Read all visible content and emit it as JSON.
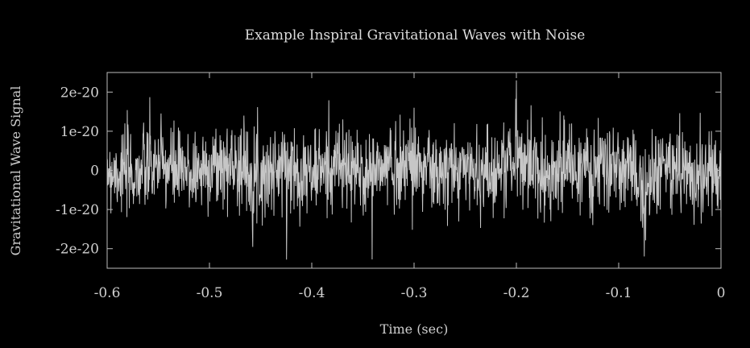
{
  "chart_data": {
    "type": "line",
    "title": "Example Inspiral Gravitational Waves with Noise",
    "xlabel": "Time (sec)",
    "ylabel": "Gravitational Wave Signal",
    "xlim": [
      -0.6,
      0
    ],
    "ylim": [
      -2.5e-20,
      2.5e-20
    ],
    "x_ticks": [
      -0.6,
      -0.5,
      -0.4,
      -0.3,
      -0.2,
      -0.1,
      0
    ],
    "x_tick_labels": [
      "-0.6",
      "-0.5",
      "-0.4",
      "-0.3",
      "-0.2",
      "-0.1",
      "0"
    ],
    "y_ticks": [
      2e-20,
      1e-20,
      0,
      -1e-20,
      -2e-20
    ],
    "y_tick_labels": [
      "2e-20",
      "1e-20",
      "0",
      "-1e-20",
      "-2e-20"
    ],
    "grid": false,
    "legend": false,
    "line_color": "#c6c6c6",
    "background_color": "#000000",
    "series": [
      {
        "x": [
          -0.6,
          -0.575,
          -0.55,
          -0.525,
          -0.5,
          -0.475,
          -0.45,
          -0.425,
          -0.4,
          -0.375,
          -0.35,
          -0.325,
          -0.3,
          -0.275,
          -0.25,
          -0.225,
          -0.2,
          -0.175,
          -0.15,
          -0.125,
          -0.1,
          -0.075,
          -0.05,
          -0.025,
          0
        ],
        "y": [
          3e-21,
          -6e-21,
          8e-21,
          -5e-21,
          4e-21,
          9e-21,
          -7e-21,
          5e-21,
          -3e-21,
          7e-21,
          -8e-21,
          6e-21,
          1.6e-20,
          -9e-21,
          4e-21,
          -6e-21,
          2.3e-20,
          -5e-21,
          7e-21,
          -4e-21,
          6e-21,
          -2.2e-20,
          8e-21,
          -7e-21,
          -1.2e-20
        ]
      }
    ]
  }
}
